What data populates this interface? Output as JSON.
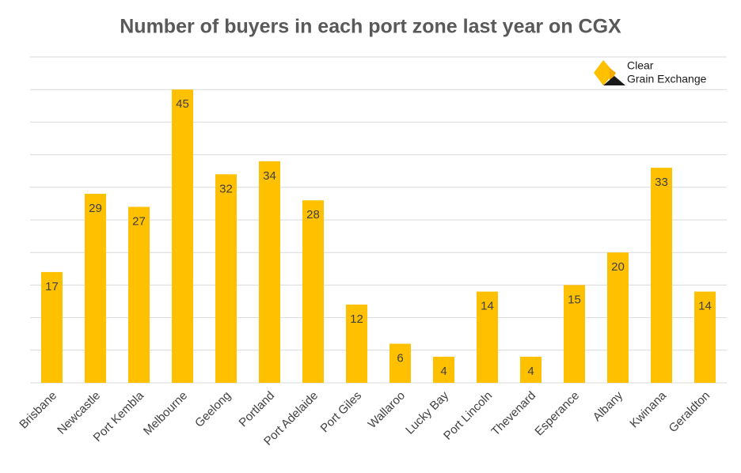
{
  "chart_data": {
    "type": "bar",
    "title": "Number of buyers in each port zone last year on CGX",
    "categories": [
      "Brisbane",
      "Newcastle",
      "Port Kembla",
      "Melbourne",
      "Geelong",
      "Portland",
      "Port Adelaide",
      "Port Giles",
      "Wallaroo",
      "Lucky Bay",
      "Port Lincoln",
      "Thevenard",
      "Esperance",
      "Albany",
      "Kwinana",
      "Geraldton"
    ],
    "values": [
      17,
      29,
      27,
      45,
      32,
      34,
      28,
      12,
      6,
      4,
      14,
      4,
      15,
      20,
      33,
      14
    ],
    "color": "#ffc000",
    "ylim": [
      0,
      50
    ],
    "yticks": [
      0,
      5,
      10,
      15,
      20,
      25,
      30,
      35,
      40,
      45,
      50
    ],
    "grid": true,
    "logo_text": [
      "Clear",
      "Grain Exchange"
    ]
  }
}
